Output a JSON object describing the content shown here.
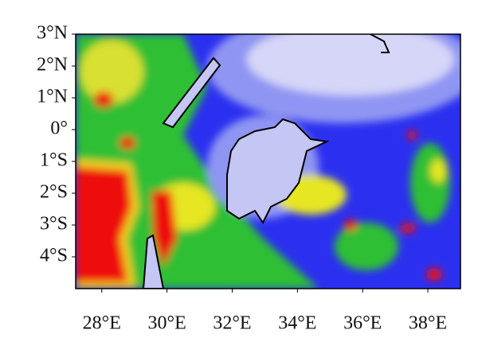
{
  "chart_data": {
    "type": "map",
    "xlim": [
      27.2,
      39
    ],
    "ylim": [
      -5,
      3
    ],
    "xticks": [
      {
        "value": 28,
        "label": "28°E"
      },
      {
        "value": 30,
        "label": "30°E"
      },
      {
        "value": 32,
        "label": "32°E"
      },
      {
        "value": 34,
        "label": "34°E"
      },
      {
        "value": 36,
        "label": "36°E"
      },
      {
        "value": 38,
        "label": "38°E"
      }
    ],
    "yticks": [
      {
        "value": 3,
        "label": "3°N"
      },
      {
        "value": 2,
        "label": "2°N"
      },
      {
        "value": 1,
        "label": "1°N"
      },
      {
        "value": 0,
        "label": "0°"
      },
      {
        "value": -1,
        "label": "1°S"
      },
      {
        "value": -2,
        "label": "2°S"
      },
      {
        "value": -3,
        "label": "3°S"
      },
      {
        "value": -4,
        "label": "4°S"
      }
    ]
  }
}
